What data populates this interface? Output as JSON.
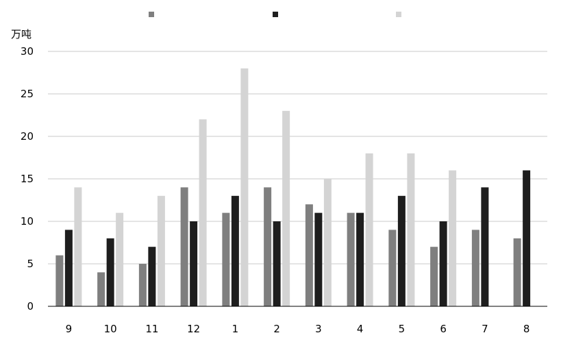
{
  "chart_data": {
    "type": "bar",
    "ylabel": "万吨",
    "ylim": [
      0,
      30
    ],
    "yticks": [
      "0",
      "5",
      "10",
      "15",
      "20",
      "25",
      "30"
    ],
    "categories": [
      "9",
      "10",
      "11",
      "12",
      "1",
      "2",
      "3",
      "4",
      "5",
      "6",
      "7",
      "8"
    ],
    "series": [
      {
        "color": "#7f7f7f",
        "values": [
          6,
          4,
          5,
          14,
          11,
          14,
          12,
          11,
          9,
          7,
          9,
          8
        ]
      },
      {
        "color": "#1e1e1e",
        "values": [
          9,
          8,
          7,
          10,
          13,
          10,
          11,
          11,
          13,
          10,
          14,
          16
        ]
      },
      {
        "color": "#d4d4d4",
        "values": [
          14,
          11,
          13,
          22,
          28,
          23,
          15,
          18,
          18,
          16,
          null,
          null
        ]
      }
    ],
    "grid": true,
    "legend": "top"
  }
}
